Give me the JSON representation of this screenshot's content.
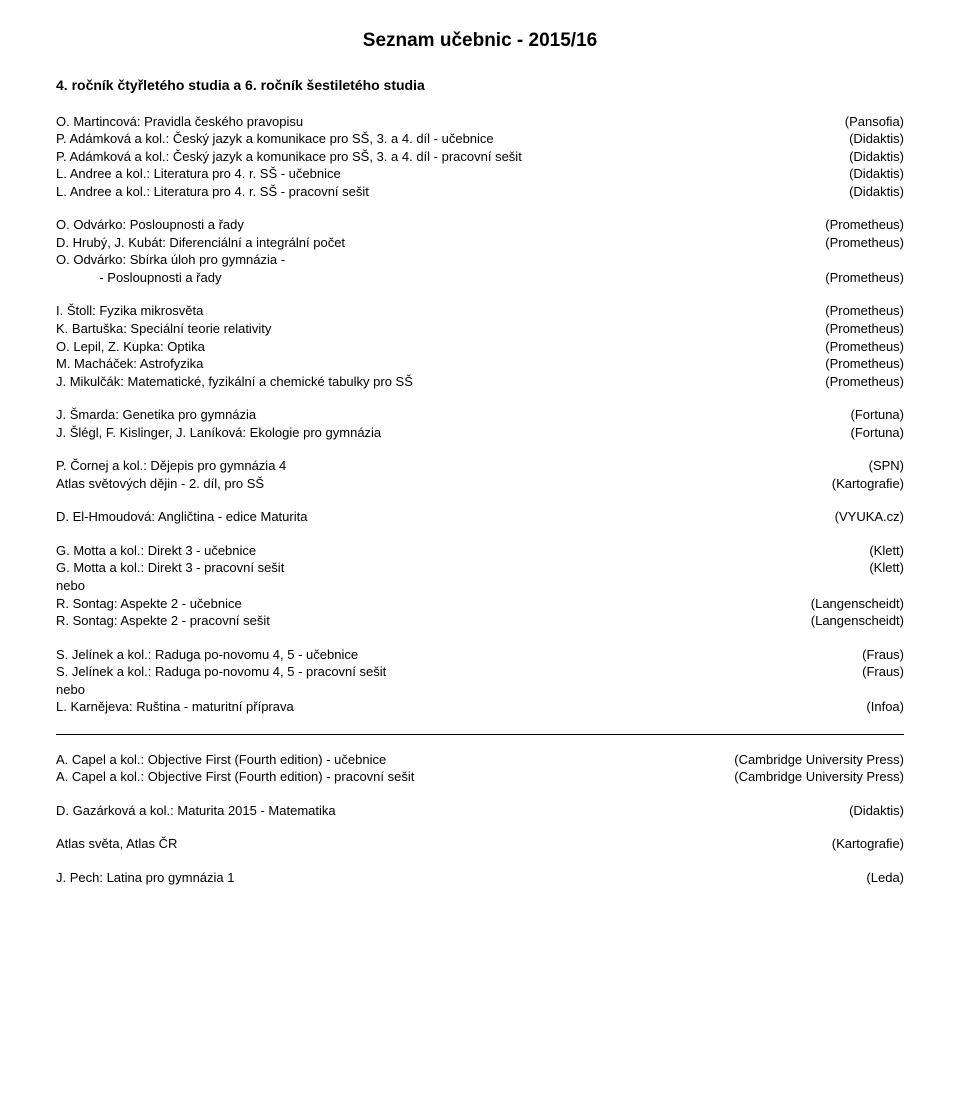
{
  "title": "Seznam učebnic - 2015/16",
  "subtitle": "4. ročník čtyřletého studia a 6. ročník šestiletého studia",
  "main": [
    [
      {
        "left": "O. Martincová: Pravidla českého pravopisu",
        "right": "(Pansofia)"
      },
      {
        "left": "P. Adámková a kol.: Český jazyk a komunikace pro SŠ, 3. a 4. díl - učebnice",
        "right": "(Didaktis)"
      },
      {
        "left": "P. Adámková a kol.: Český jazyk a komunikace pro SŠ, 3. a 4. díl - pracovní sešit",
        "right": "(Didaktis)"
      },
      {
        "left": "L. Andree a kol.: Literatura pro 4. r. SŠ - učebnice",
        "right": "(Didaktis)"
      },
      {
        "left": "L. Andree a kol.: Literatura pro 4. r. SŠ - pracovní sešit",
        "right": "(Didaktis)"
      }
    ],
    [
      {
        "left": "O. Odvárko: Posloupnosti a řady",
        "right": "(Prometheus)"
      },
      {
        "left": "D. Hrubý, J. Kubát: Diferenciální a integrální počet",
        "right": "(Prometheus)"
      },
      {
        "left": "O. Odvárko: Sbírka úloh pro gymnázia -",
        "right": ""
      },
      {
        "left": "            - Posloupnosti a řady",
        "right": "(Prometheus)"
      }
    ],
    [
      {
        "left": "I. Štoll: Fyzika mikrosvěta",
        "right": "(Prometheus)"
      },
      {
        "left": "K. Bartuška: Speciální teorie relativity",
        "right": "(Prometheus)"
      },
      {
        "left": "O. Lepil, Z. Kupka: Optika",
        "right": "(Prometheus)"
      },
      {
        "left": "M. Macháček: Astrofyzika",
        "right": "(Prometheus)"
      },
      {
        "left": "J. Mikulčák: Matematické, fyzikální a chemické tabulky pro SŠ",
        "right": "(Prometheus)"
      }
    ],
    [
      {
        "left": "J. Šmarda: Genetika pro gymnázia",
        "right": "(Fortuna)"
      },
      {
        "left": "J. Šlégl, F. Kislinger, J. Laníková: Ekologie pro gymnázia",
        "right": "(Fortuna)"
      }
    ],
    [
      {
        "left": "P. Čornej a kol.: Dějepis pro gymnázia 4",
        "right": "(SPN)"
      },
      {
        "left": "Atlas světových dějin - 2. díl, pro SŠ",
        "right": "(Kartografie)"
      }
    ],
    [
      {
        "left": "D. El-Hmoudová: Angličtina - edice Maturita",
        "right": "(VYUKA.cz)"
      }
    ],
    [
      {
        "left": "G. Motta a kol.: Direkt 3 - učebnice",
        "right": "(Klett)"
      },
      {
        "left": "G. Motta a kol.: Direkt 3 - pracovní sešit",
        "right": "(Klett)"
      },
      {
        "left": "nebo",
        "right": ""
      },
      {
        "left": "R. Sontag: Aspekte 2 - učebnice",
        "right": "(Langenscheidt)"
      },
      {
        "left": "R. Sontag: Aspekte 2 - pracovní sešit",
        "right": "(Langenscheidt)"
      }
    ],
    [
      {
        "left": "S. Jelínek a kol.: Raduga po-novomu 4, 5 - učebnice",
        "right": "(Fraus)"
      },
      {
        "left": "S. Jelínek a kol.: Raduga po-novomu 4, 5 - pracovní sešit",
        "right": "(Fraus)"
      },
      {
        "left": "nebo",
        "right": ""
      },
      {
        "left": "L. Karnějeva: Ruština - maturitní příprava",
        "right": "(Infoa)"
      }
    ]
  ],
  "extra": [
    [
      {
        "left": "A. Capel a kol.: Objective First (Fourth edition) - učebnice",
        "right": "(Cambridge University Press)"
      },
      {
        "left": "A. Capel a kol.: Objective First (Fourth edition) - pracovní sešit",
        "right": "(Cambridge University Press)"
      }
    ],
    [
      {
        "left": "D. Gazárková a kol.: Maturita 2015 - Matematika",
        "right": "(Didaktis)"
      }
    ],
    [
      {
        "left": "Atlas světa, Atlas ČR",
        "right": "(Kartografie)"
      }
    ],
    [
      {
        "left": "J. Pech: Latina pro gymnázia 1",
        "right": "(Leda)"
      }
    ]
  ]
}
